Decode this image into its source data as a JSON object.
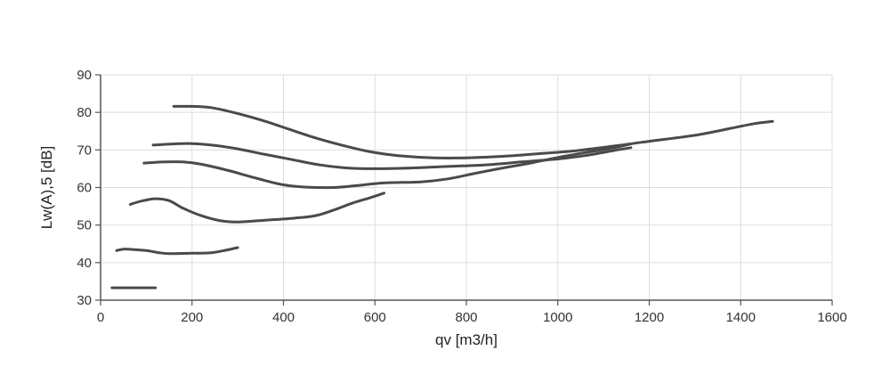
{
  "chart_data": {
    "type": "line",
    "title": "",
    "xlabel": "qv [m3/h]",
    "ylabel": "Lw(A),5 [dB]",
    "xlim": [
      0,
      1600
    ],
    "ylim": [
      30,
      90
    ],
    "xticks": [
      0,
      200,
      400,
      600,
      800,
      1000,
      1200,
      1400,
      1600
    ],
    "yticks": [
      30,
      40,
      50,
      60,
      70,
      80,
      90
    ],
    "grid": true,
    "series_color": "#4a4a4a",
    "series": [
      {
        "values": [
          [
            25,
            33.3
          ],
          [
            50,
            33.3
          ],
          [
            80,
            33.3
          ],
          [
            100,
            33.3
          ],
          [
            120,
            33.3
          ]
        ]
      },
      {
        "values": [
          [
            35,
            43.2
          ],
          [
            50,
            43.6
          ],
          [
            70,
            43.5
          ],
          [
            100,
            43.2
          ],
          [
            130,
            42.6
          ],
          [
            150,
            42.4
          ],
          [
            200,
            42.5
          ],
          [
            240,
            42.6
          ],
          [
            270,
            43.2
          ],
          [
            300,
            44.0
          ]
        ]
      },
      {
        "values": [
          [
            65,
            55.5
          ],
          [
            90,
            56.4
          ],
          [
            120,
            57.0
          ],
          [
            150,
            56.5
          ],
          [
            180,
            54.5
          ],
          [
            220,
            52.5
          ],
          [
            260,
            51.2
          ],
          [
            300,
            50.8
          ],
          [
            360,
            51.3
          ],
          [
            420,
            51.8
          ],
          [
            470,
            52.5
          ],
          [
            510,
            54.0
          ],
          [
            550,
            55.8
          ],
          [
            590,
            57.3
          ],
          [
            620,
            58.5
          ]
        ]
      },
      {
        "values": [
          [
            95,
            66.5
          ],
          [
            140,
            66.8
          ],
          [
            180,
            66.8
          ],
          [
            220,
            66.2
          ],
          [
            280,
            64.5
          ],
          [
            340,
            62.5
          ],
          [
            400,
            60.7
          ],
          [
            450,
            60.1
          ],
          [
            510,
            60.0
          ],
          [
            560,
            60.5
          ],
          [
            620,
            61.2
          ],
          [
            700,
            61.5
          ],
          [
            760,
            62.3
          ],
          [
            820,
            63.8
          ],
          [
            880,
            65.2
          ],
          [
            940,
            66.5
          ],
          [
            1000,
            68.0
          ],
          [
            1060,
            69.3
          ],
          [
            1120,
            70.5
          ],
          [
            1160,
            71.6
          ]
        ]
      },
      {
        "values": [
          [
            115,
            71.3
          ],
          [
            160,
            71.6
          ],
          [
            200,
            71.7
          ],
          [
            250,
            71.2
          ],
          [
            300,
            70.3
          ],
          [
            360,
            68.8
          ],
          [
            420,
            67.4
          ],
          [
            480,
            66.0
          ],
          [
            540,
            65.2
          ],
          [
            600,
            65.0
          ],
          [
            680,
            65.2
          ],
          [
            760,
            65.6
          ],
          [
            840,
            66.0
          ],
          [
            920,
            66.8
          ],
          [
            1000,
            67.6
          ],
          [
            1060,
            68.5
          ],
          [
            1130,
            70.0
          ],
          [
            1160,
            70.6
          ]
        ]
      },
      {
        "values": [
          [
            160,
            81.6
          ],
          [
            200,
            81.6
          ],
          [
            240,
            81.3
          ],
          [
            290,
            80.0
          ],
          [
            350,
            78.0
          ],
          [
            410,
            75.6
          ],
          [
            470,
            73.2
          ],
          [
            530,
            71.2
          ],
          [
            590,
            69.5
          ],
          [
            650,
            68.5
          ],
          [
            730,
            67.9
          ],
          [
            800,
            67.9
          ],
          [
            880,
            68.3
          ],
          [
            960,
            69.0
          ],
          [
            1040,
            69.8
          ],
          [
            1120,
            71.0
          ],
          [
            1200,
            72.3
          ],
          [
            1300,
            73.9
          ],
          [
            1380,
            75.8
          ],
          [
            1430,
            77.0
          ],
          [
            1470,
            77.6
          ]
        ]
      }
    ]
  }
}
